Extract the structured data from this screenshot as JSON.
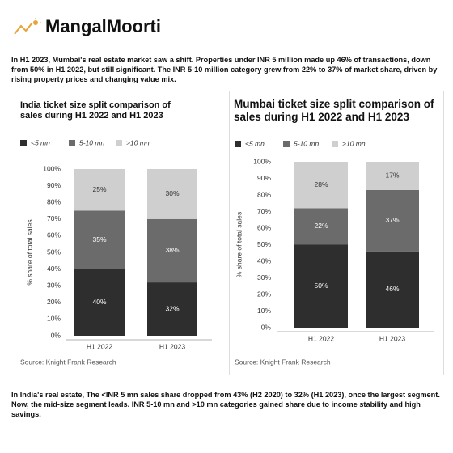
{
  "brand": "MangalMoorti",
  "intro": "In H1 2023, Mumbai's real estate market saw a shift. Properties under INR 5 million made up 46% of transactions, down from 50% in H1 2022, but still significant. The INR 5-10 million category grew from 22% to 37% of market share, driven by rising property prices and changing value mix.",
  "outro": "In India's real estate, The <INR 5 mn sales share dropped from 43% (H2 2020) to 32% (H1 2023), once the largest segment. Now, the mid-size segment leads. INR 5-10 mn and >10 mn categories gained share due to income stability and high savings.",
  "chart_data": [
    {
      "type": "stacked-bar",
      "title": "India ticket size split comparison of sales during H1 2022 and H1 2023",
      "ylabel": "% share of total sales",
      "source": "Source: Knight Frank Research",
      "categories": [
        "H1 2022",
        "H1 2023"
      ],
      "series": [
        {
          "name": "<5 mn",
          "color": "#2e2e2e",
          "values": [
            40,
            32
          ],
          "value_labels": [
            "40%",
            "32%"
          ]
        },
        {
          "name": "5-10 mn",
          "color": "#6b6b6b",
          "values": [
            35,
            38
          ],
          "value_labels": [
            "35%",
            "38%"
          ]
        },
        {
          "name": ">10 mn",
          "color": "#cfcfcf",
          "values": [
            25,
            30
          ],
          "value_labels": [
            "25%",
            "30%"
          ]
        }
      ],
      "ylim": [
        0,
        100
      ],
      "yticks": [
        {
          "value": 0,
          "label": "0%"
        },
        {
          "value": 10,
          "label": "10%"
        },
        {
          "value": 20,
          "label": "20%"
        },
        {
          "value": 30,
          "label": "30%"
        },
        {
          "value": 40,
          "label": "40%"
        },
        {
          "value": 50,
          "label": "50%"
        },
        {
          "value": 60,
          "label": "60%"
        },
        {
          "value": 70,
          "label": "70%"
        },
        {
          "value": 80,
          "label": "80%"
        },
        {
          "value": 90,
          "label": "90%"
        },
        {
          "value": 100,
          "label": "100%"
        }
      ],
      "legend": "top-left"
    },
    {
      "type": "stacked-bar",
      "title": "Mumbai ticket size split comparison of sales during H1 2022 and H1 2023",
      "ylabel": "% share of total sales",
      "source": "Source: Knight Frank Research",
      "categories": [
        "H1 2022",
        "H1 2023"
      ],
      "series": [
        {
          "name": "<5 mn",
          "color": "#2e2e2e",
          "values": [
            50,
            46
          ],
          "value_labels": [
            "50%",
            "46%"
          ]
        },
        {
          "name": "5-10 mn",
          "color": "#6b6b6b",
          "values": [
            22,
            37
          ],
          "value_labels": [
            "22%",
            "37%"
          ]
        },
        {
          "name": ">10 mn",
          "color": "#cfcfcf",
          "values": [
            28,
            17
          ],
          "value_labels": [
            "28%",
            "17%"
          ]
        }
      ],
      "ylim": [
        0,
        100
      ],
      "yticks": [
        {
          "value": 0,
          "label": "0%"
        },
        {
          "value": 10,
          "label": "10%"
        },
        {
          "value": 20,
          "label": "20%"
        },
        {
          "value": 30,
          "label": "30%"
        },
        {
          "value": 40,
          "label": "40%"
        },
        {
          "value": 50,
          "label": "50%"
        },
        {
          "value": 60,
          "label": "60%"
        },
        {
          "value": 70,
          "label": "70%"
        },
        {
          "value": 80,
          "label": "80%"
        },
        {
          "value": 90,
          "label": "90%"
        },
        {
          "value": 100,
          "label": "100%"
        }
      ],
      "legend": "top-left"
    }
  ]
}
